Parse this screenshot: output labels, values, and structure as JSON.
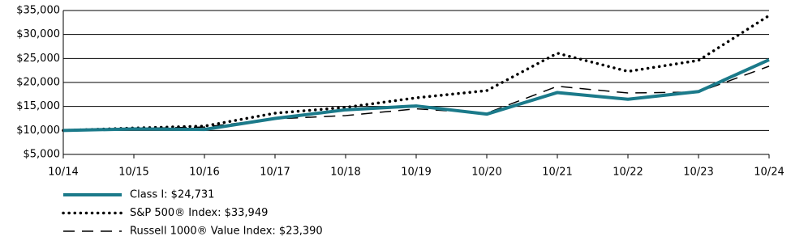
{
  "chart_data": {
    "type": "line",
    "categories": [
      "10/14",
      "10/15",
      "10/16",
      "10/17",
      "10/18",
      "10/19",
      "10/20",
      "10/21",
      "10/22",
      "10/23",
      "10/24"
    ],
    "series": [
      {
        "name": "Class I: $24,731",
        "color": "#1b7a8a",
        "line_style": "solid",
        "values": [
          10000,
          10300,
          10200,
          12500,
          14300,
          15100,
          13400,
          17900,
          16500,
          18100,
          24731
        ]
      },
      {
        "name": "S&P 500® Index: $33,949",
        "color": "#000000",
        "line_style": "dotted",
        "values": [
          10000,
          10500,
          10900,
          13600,
          14800,
          16800,
          18300,
          26100,
          22300,
          24600,
          33949
        ]
      },
      {
        "name": "Russell 1000® Value Index: $23,390",
        "color": "#000000",
        "line_style": "dashed",
        "values": [
          10000,
          10400,
          10700,
          12400,
          13100,
          14500,
          13600,
          19200,
          17800,
          18000,
          23390
        ]
      }
    ],
    "ylim": [
      5000,
      35000
    ],
    "yticks": [
      {
        "value": 5000,
        "label": "$5,000"
      },
      {
        "value": 10000,
        "label": "$10,000"
      },
      {
        "value": 15000,
        "label": "$15,000"
      },
      {
        "value": 20000,
        "label": "$20,000"
      },
      {
        "value": 25000,
        "label": "$25,000"
      },
      {
        "value": 30000,
        "label": "$30,000"
      },
      {
        "value": 35000,
        "label": "$35,000"
      }
    ],
    "grid": true,
    "legend": "bottom"
  }
}
